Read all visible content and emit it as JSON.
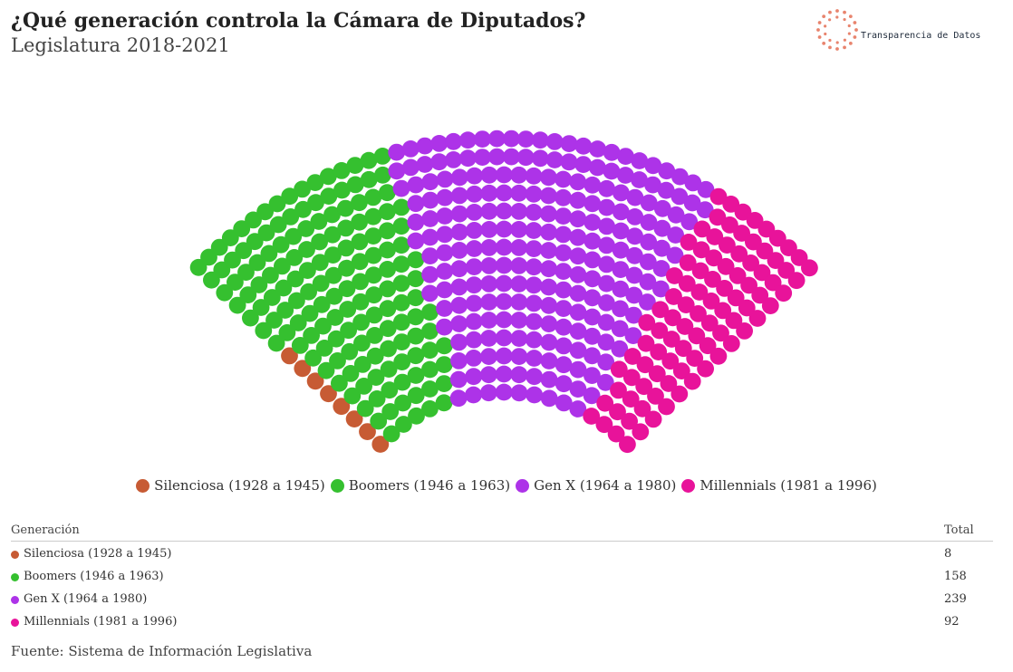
{
  "title": "¿Qué generación controla la Cámara de Diputados?",
  "subtitle": "Legislatura 2018-2021",
  "logo": {
    "text": "Transparencia de Datos",
    "color": "#e8846e"
  },
  "source": "Fuente: Sistema de Información Legislativa",
  "table": {
    "header_generation": "Generación",
    "header_total": "Total"
  },
  "chart_data": {
    "type": "parliament",
    "title": "¿Qué generación controla la Cámara de Diputados?",
    "subtitle": "Legislatura 2018-2021",
    "total_seats": 497,
    "series": [
      {
        "name": "Silenciosa (1928 a 1945)",
        "value": 8,
        "color": "#c75b34"
      },
      {
        "name": "Boomers (1946 a 1963)",
        "value": 158,
        "color": "#35c02f"
      },
      {
        "name": "Gen X (1964 a 1980)",
        "value": 239,
        "color": "#ad33e8"
      },
      {
        "name": "Millennials (1981 a 1996)",
        "value": 92,
        "color": "#e8139a"
      }
    ],
    "legend_position": "bottom"
  }
}
